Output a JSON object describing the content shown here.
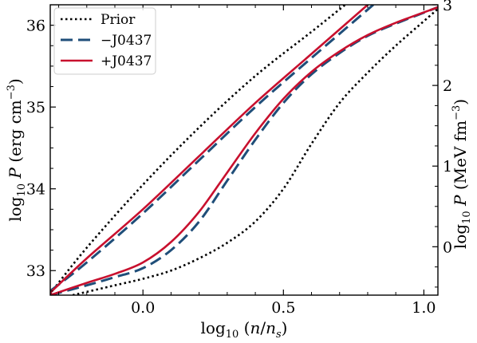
{
  "chart_data": {
    "type": "line",
    "xlabel": "log10 (n/ns)",
    "ylabel": "log10 P (erg cm^-3)",
    "y2label": "log10 P (MeV fm^-3)",
    "xlim": [
      -0.33,
      1.05
    ],
    "ylim": [
      32.7,
      36.25
    ],
    "y2lim": [
      -0.6,
      3.0
    ],
    "x_ticks": [
      0.0,
      0.5,
      1.0
    ],
    "x_tick_labels": [
      "0.0",
      "0.5",
      "1.0"
    ],
    "y_ticks": [
      33,
      34,
      35,
      36
    ],
    "y_tick_labels": [
      "33",
      "34",
      "35",
      "36"
    ],
    "y2_ticks": [
      0,
      1,
      2,
      3
    ],
    "y2_tick_labels": [
      "0",
      "1",
      "2",
      "3"
    ],
    "grid": false,
    "legend": {
      "position": "top-left",
      "entries": [
        "Prior",
        "−J0437",
        "+J0437"
      ]
    },
    "colors": {
      "prior": "#000000",
      "minus": "#1f4e79",
      "plus": "#c8102e"
    },
    "series": [
      {
        "name": "Prior",
        "style": "dotted",
        "color": "#000000",
        "band": "upper",
        "x": [
          -0.33,
          -0.2,
          0.0,
          0.2,
          0.4,
          0.6,
          0.72
        ],
        "y": [
          32.72,
          33.28,
          34.05,
          34.75,
          35.38,
          35.92,
          36.25
        ]
      },
      {
        "name": "Prior",
        "style": "dotted",
        "color": "#000000",
        "band": "lower",
        "x": [
          -0.25,
          -0.1,
          0.0,
          0.1,
          0.2,
          0.3,
          0.4,
          0.5,
          0.6,
          0.7,
          0.8,
          0.9,
          1.0,
          1.05
        ],
        "y": [
          32.7,
          32.82,
          32.9,
          33.0,
          33.15,
          33.34,
          33.6,
          34.0,
          34.55,
          35.05,
          35.42,
          35.75,
          36.05,
          36.2
        ]
      },
      {
        "name": "−J0437",
        "style": "dashed",
        "color": "#1f4e79",
        "band": "upper",
        "x": [
          -0.33,
          -0.2,
          0.0,
          0.2,
          0.4,
          0.6,
          0.82
        ],
        "y": [
          32.75,
          33.1,
          33.7,
          34.35,
          35.0,
          35.6,
          36.25
        ]
      },
      {
        "name": "−J0437",
        "style": "dashed",
        "color": "#1f4e79",
        "band": "lower",
        "x": [
          -0.33,
          -0.2,
          -0.1,
          0.0,
          0.1,
          0.2,
          0.3,
          0.4,
          0.5,
          0.6,
          0.7,
          0.8,
          0.9,
          1.05
        ],
        "y": [
          32.7,
          32.82,
          32.92,
          33.03,
          33.25,
          33.6,
          34.1,
          34.6,
          35.05,
          35.4,
          35.66,
          35.87,
          36.02,
          36.22
        ]
      },
      {
        "name": "+J0437",
        "style": "solid",
        "color": "#c8102e",
        "band": "upper",
        "x": [
          -0.33,
          -0.2,
          0.0,
          0.2,
          0.4,
          0.6,
          0.8
        ],
        "y": [
          32.73,
          33.15,
          33.75,
          34.4,
          35.05,
          35.65,
          36.25
        ]
      },
      {
        "name": "+J0437",
        "style": "solid",
        "color": "#c8102e",
        "band": "lower",
        "x": [
          -0.33,
          -0.2,
          -0.1,
          0.0,
          0.1,
          0.2,
          0.3,
          0.4,
          0.5,
          0.6,
          0.7,
          0.8,
          0.9,
          1.05
        ],
        "y": [
          32.7,
          32.85,
          32.96,
          33.1,
          33.35,
          33.72,
          34.2,
          34.68,
          35.1,
          35.43,
          35.68,
          35.88,
          36.03,
          36.22
        ]
      }
    ]
  }
}
